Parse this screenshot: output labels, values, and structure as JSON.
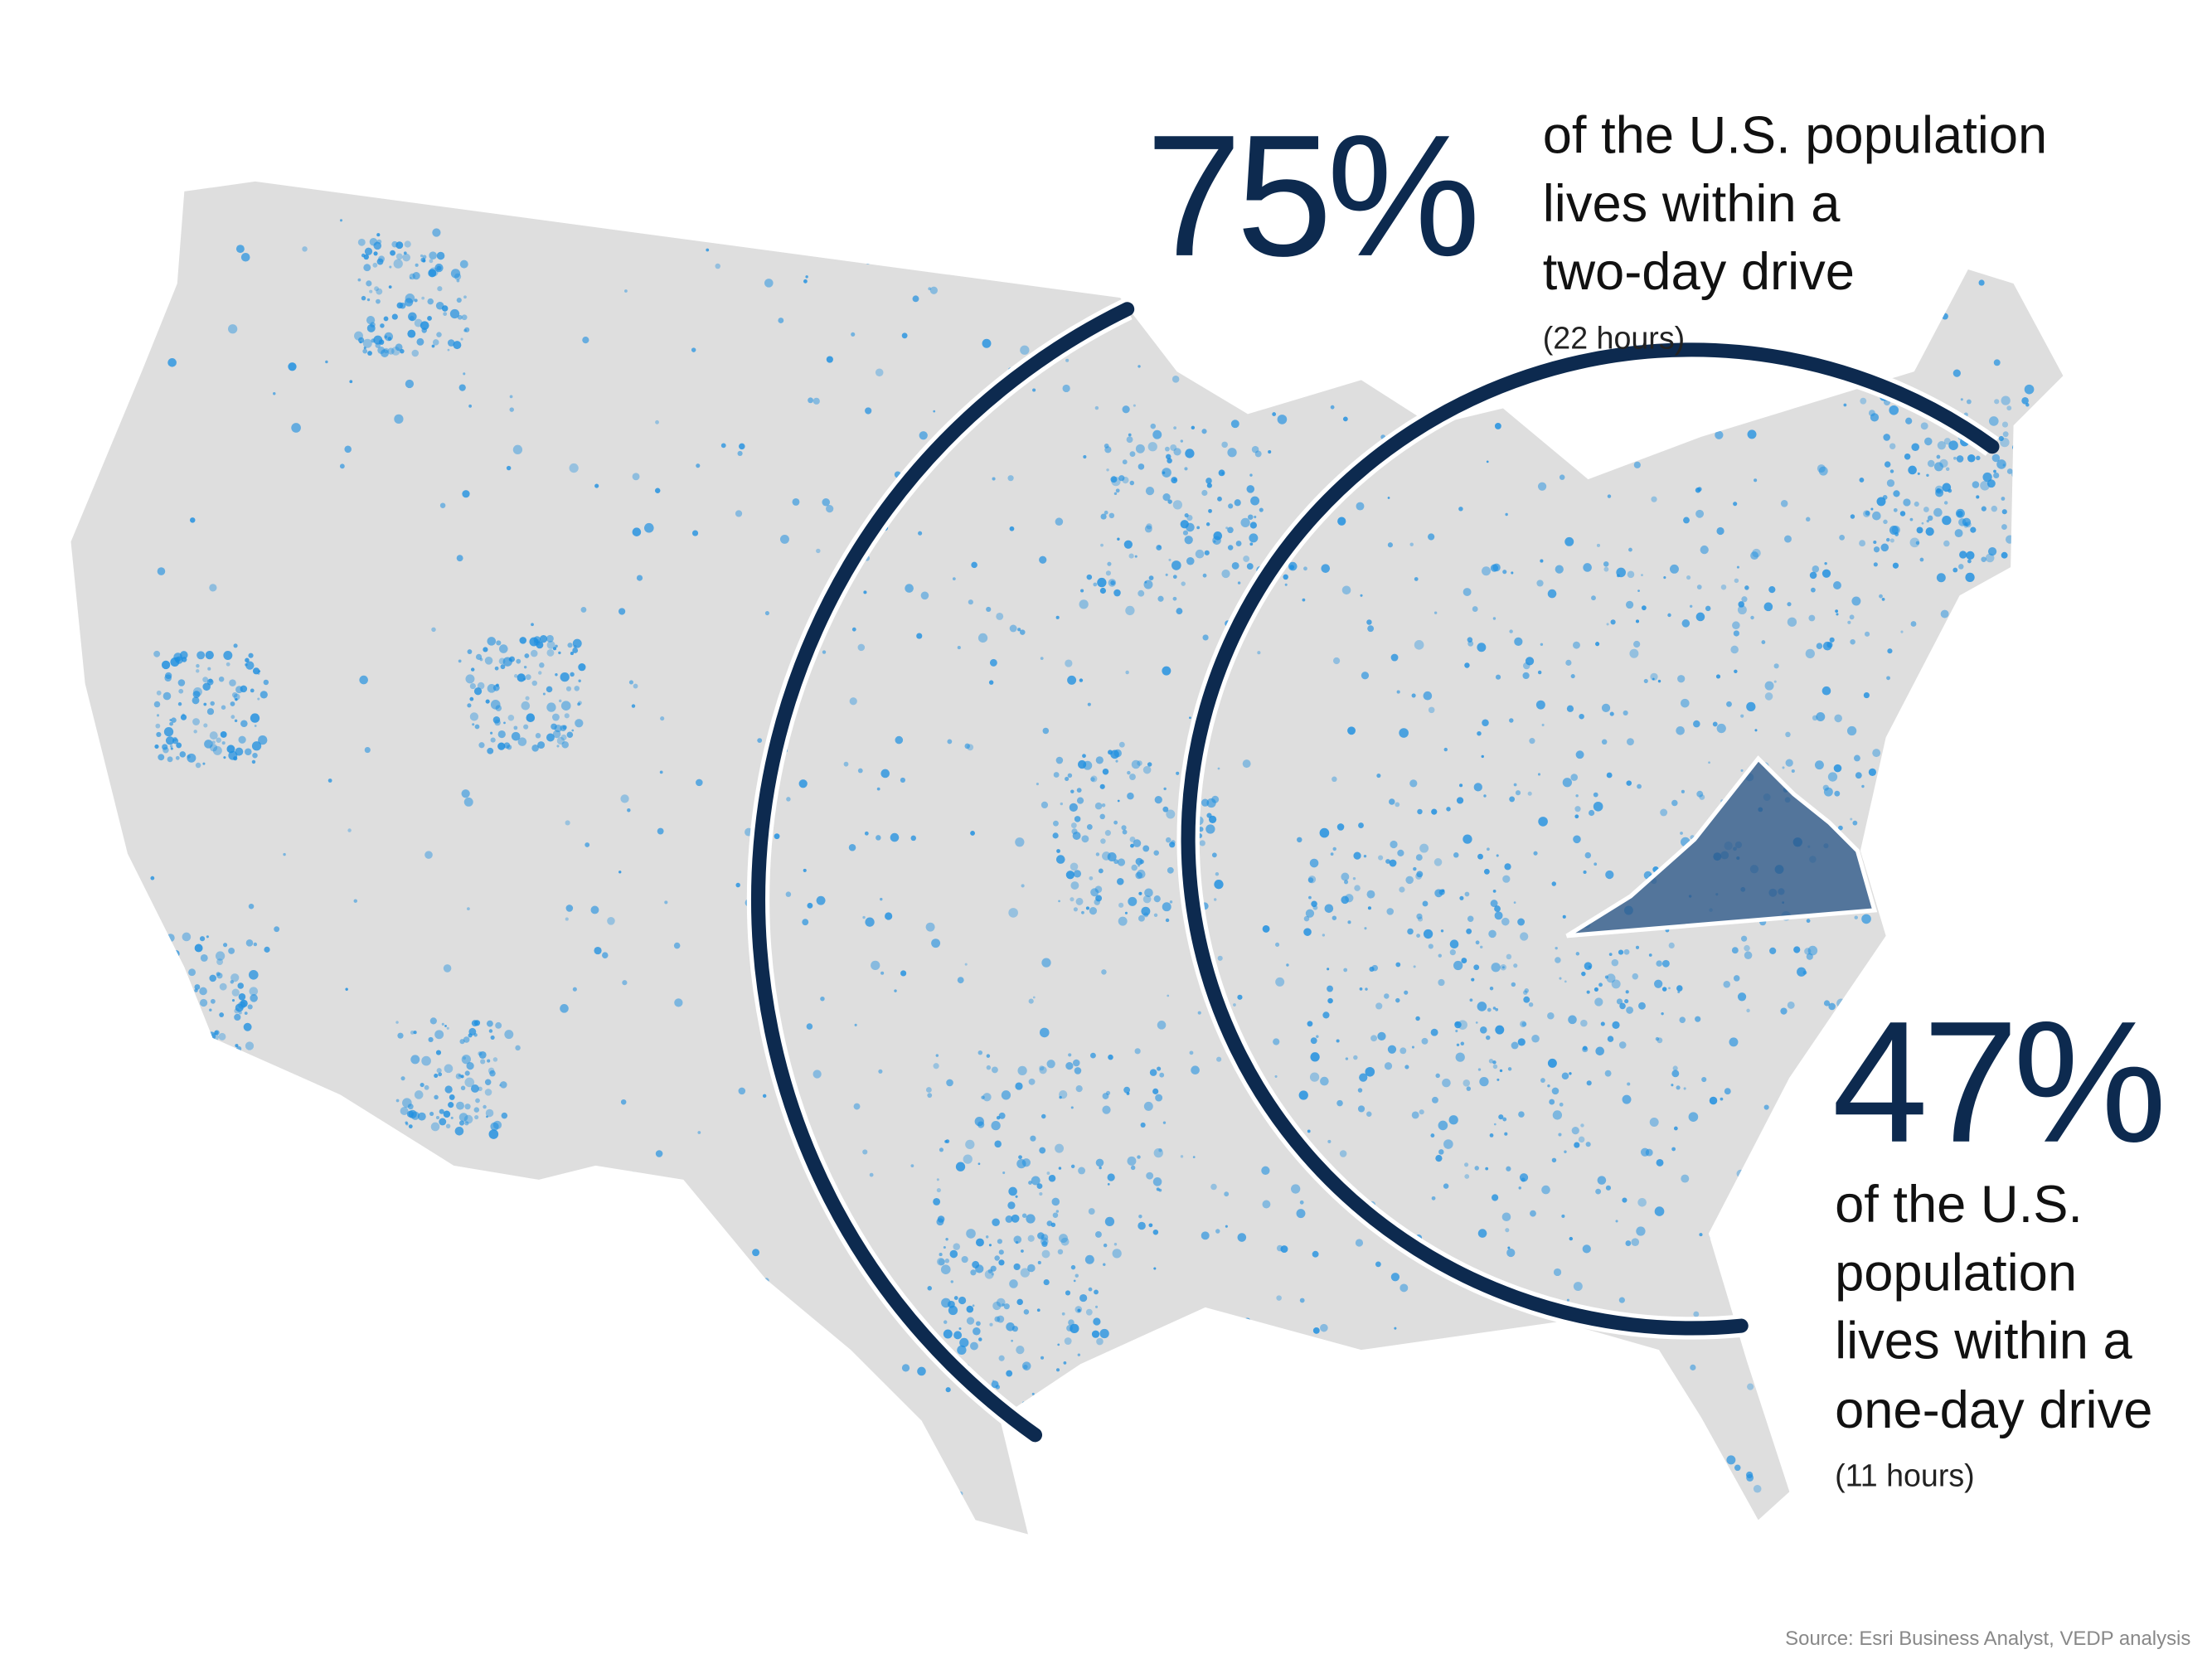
{
  "stats": [
    {
      "percent": "75%",
      "lines": [
        "of the U.S. population",
        "lives within a",
        "two-day drive"
      ],
      "note": "(22 hours)"
    },
    {
      "percent": "47%",
      "lines": [
        "of the U.S.",
        "population",
        "lives within a",
        "one-day drive"
      ],
      "note": "(11 hours)"
    }
  ],
  "source": "Source: Esri Business Analyst, VEDP analysis"
}
